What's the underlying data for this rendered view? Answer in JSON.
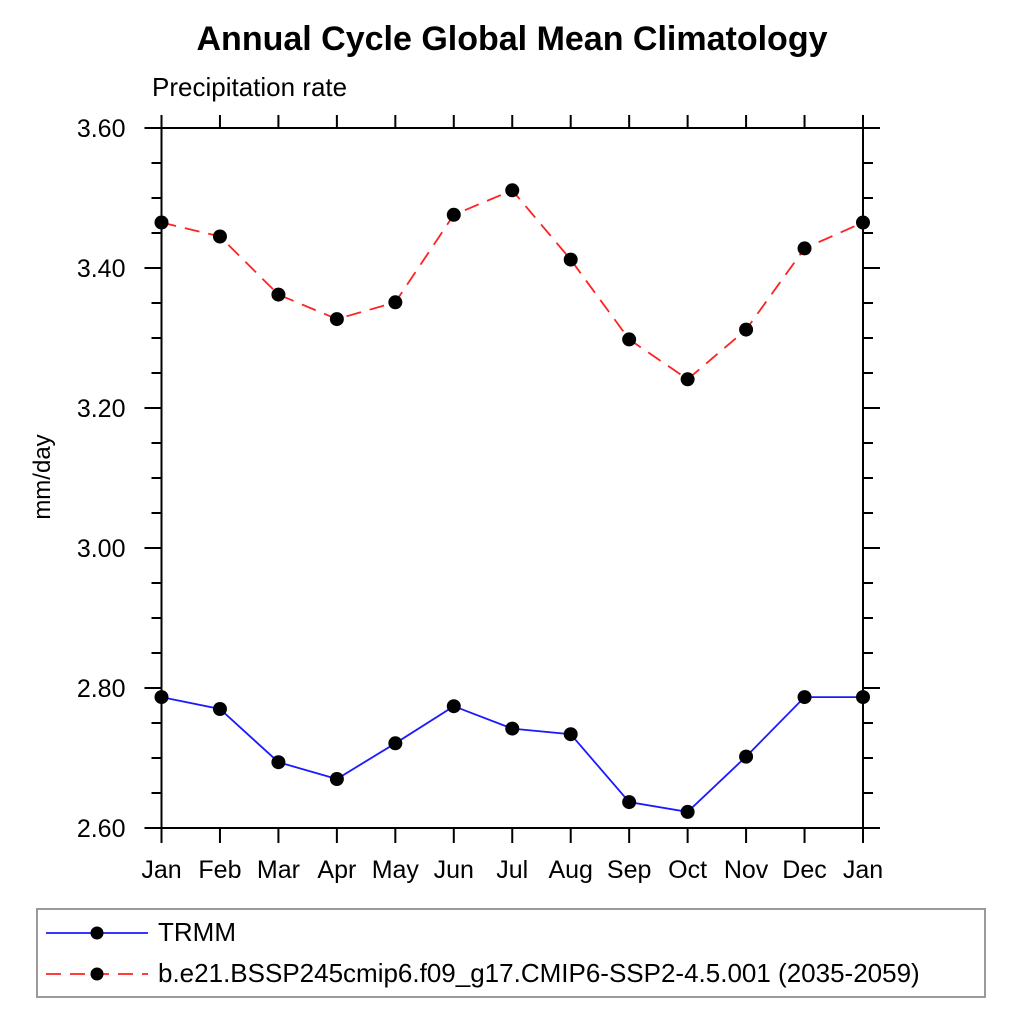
{
  "chart_data": {
    "type": "line",
    "title": "Annual Cycle Global Mean Climatology",
    "subtitle": "Precipitation rate",
    "ylabel": "mm/day",
    "x_categories": [
      "Jan",
      "Feb",
      "Mar",
      "Apr",
      "May",
      "Jun",
      "Jul",
      "Aug",
      "Sep",
      "Oct",
      "Nov",
      "Dec",
      "Jan"
    ],
    "series": [
      {
        "name": "TRMM",
        "line_style": "solid",
        "line_color": "#1a1aff",
        "marker": "filled-circle",
        "marker_color": "#000000",
        "values": [
          2.787,
          2.77,
          2.694,
          2.67,
          2.721,
          2.774,
          2.742,
          2.734,
          2.637,
          2.623,
          2.702,
          2.787,
          2.787
        ]
      },
      {
        "name": "b.e21.BSSP245cmip6.f09_g17.CMIP6-SSP2-4.5.001 (2035-2059)",
        "line_style": "dashed",
        "line_color": "#ff2222",
        "marker": "filled-circle",
        "marker_color": "#000000",
        "values": [
          3.465,
          3.445,
          3.362,
          3.327,
          3.351,
          3.476,
          3.511,
          3.412,
          3.298,
          3.241,
          3.312,
          3.428,
          3.465
        ]
      }
    ],
    "ylim": [
      2.6,
      3.6
    ],
    "ytick_major": [
      2.6,
      2.8,
      3.0,
      3.2,
      3.4,
      3.6
    ],
    "ytick_labels": [
      "2.60",
      "2.80",
      "3.00",
      "3.20",
      "3.40",
      "3.60"
    ],
    "ytick_minor_step": 0.05,
    "grid": false,
    "legend_position": "bottom-left"
  }
}
